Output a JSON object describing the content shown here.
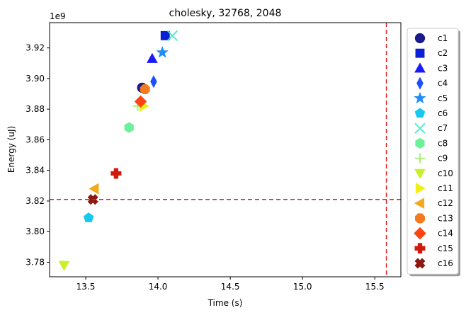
{
  "chart_data": {
    "type": "scatter",
    "title": "cholesky, 32768, 2048",
    "xlabel": "Time (s)",
    "ylabel": "Energy (uJ)",
    "y_offset_text": "1e9",
    "y_multiplier": 1000000000,
    "xlim": [
      13.25,
      15.68
    ],
    "ylim": [
      3.7705,
      3.9365
    ],
    "x_ticks": [
      13.5,
      14.0,
      14.5,
      15.0,
      15.5
    ],
    "x_tick_labels": [
      "13.5",
      "14.0",
      "14.5",
      "15.0",
      "15.5"
    ],
    "y_ticks": [
      3.78,
      3.8,
      3.82,
      3.84,
      3.86,
      3.88,
      3.9,
      3.92
    ],
    "y_tick_labels": [
      "3.78",
      "3.80",
      "3.82",
      "3.84",
      "3.86",
      "3.88",
      "3.90",
      "3.92"
    ],
    "grid": false,
    "legend_position": "outside-right",
    "reference_lines": [
      {
        "orientation": "vertical",
        "value": 15.58,
        "color": "#e41a1c",
        "style": "dashed"
      },
      {
        "orientation": "horizontal",
        "value": 3.821,
        "color": "#e41a1c",
        "style": "dashed"
      }
    ],
    "series": [
      {
        "name": "c1",
        "marker": "circle",
        "color": "#1a1a8a",
        "x": 13.89,
        "y": 3.894
      },
      {
        "name": "c2",
        "marker": "square",
        "color": "#0b1fd6",
        "x": 14.05,
        "y": 3.928
      },
      {
        "name": "c3",
        "marker": "triangle-up",
        "color": "#1a1aff",
        "x": 13.96,
        "y": 3.913
      },
      {
        "name": "c4",
        "marker": "diamond-thin",
        "color": "#1c4fff",
        "x": 13.97,
        "y": 3.898
      },
      {
        "name": "c5",
        "marker": "star",
        "color": "#1e8df5",
        "x": 14.03,
        "y": 3.917
      },
      {
        "name": "c6",
        "marker": "pentagon",
        "color": "#14c8f0",
        "x": 13.52,
        "y": 3.809
      },
      {
        "name": "c7",
        "marker": "x",
        "color": "#40ecd0",
        "x": 14.1,
        "y": 3.928
      },
      {
        "name": "c8",
        "marker": "hexagon",
        "color": "#6cf09a",
        "x": 13.8,
        "y": 3.868
      },
      {
        "name": "c9",
        "marker": "plus",
        "color": "#a0f06c",
        "x": 13.86,
        "y": 3.882
      },
      {
        "name": "c10",
        "marker": "triangle-down",
        "color": "#c8f028",
        "x": 13.35,
        "y": 3.778
      },
      {
        "name": "c11",
        "marker": "triangle-right",
        "color": "#f0f014",
        "x": 13.9,
        "y": 3.882
      },
      {
        "name": "c12",
        "marker": "triangle-left",
        "color": "#f5a81e",
        "x": 13.56,
        "y": 3.828
      },
      {
        "name": "c13",
        "marker": "octagon",
        "color": "#f57a1e",
        "x": 13.91,
        "y": 3.893
      },
      {
        "name": "c14",
        "marker": "diamond",
        "color": "#ff4414",
        "x": 13.88,
        "y": 3.885
      },
      {
        "name": "c15",
        "marker": "plus-filled",
        "color": "#d21a0a",
        "x": 13.71,
        "y": 3.838
      },
      {
        "name": "c16",
        "marker": "x-filled",
        "color": "#8a1a10",
        "x": 13.55,
        "y": 3.821
      }
    ]
  }
}
